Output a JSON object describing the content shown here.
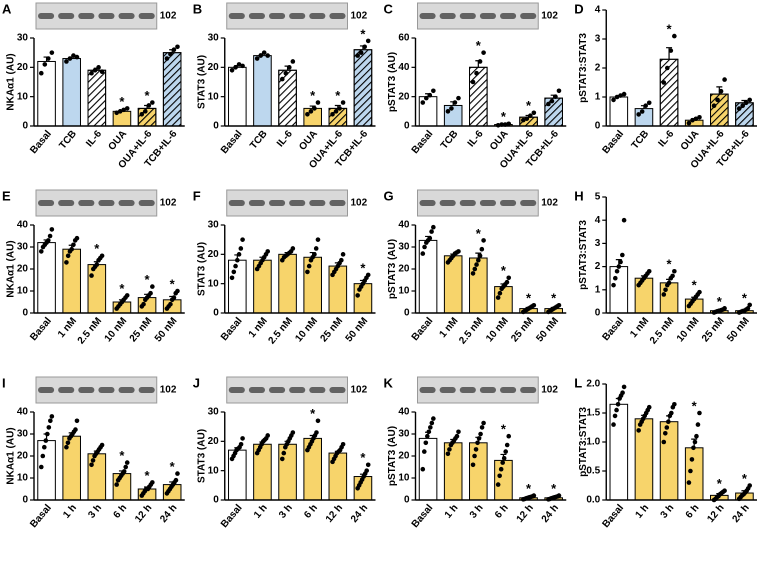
{
  "chart_data": [
    {
      "type": "bar",
      "panel": "A",
      "ylabel": "NKAα1 (AU)",
      "blot_label": "102",
      "categories": [
        "Basal",
        "TCB",
        "IL-6",
        "OUA",
        "OUA+IL-6",
        "TCB+IL-6"
      ],
      "values": [
        22,
        23,
        19,
        5,
        6,
        25
      ],
      "errors": [
        1.5,
        0.5,
        0.7,
        0.3,
        1,
        1
      ],
      "points": [
        [
          18,
          21,
          23,
          25
        ],
        [
          22,
          23,
          24,
          23.5
        ],
        [
          18,
          19,
          20,
          18.5
        ],
        [
          4.5,
          5,
          5.5,
          6
        ],
        [
          4,
          5,
          7,
          8
        ],
        [
          23,
          24.5,
          26,
          27
        ]
      ],
      "marks": [
        null,
        null,
        null,
        "*",
        "*",
        null
      ],
      "colors": [
        "#ffffff",
        "#bdd7ee",
        "#ffffff",
        "#f7d46b",
        "#f7d46b",
        "#bdd7ee"
      ],
      "hatch": [
        false,
        false,
        true,
        false,
        true,
        true
      ],
      "ylim": [
        0,
        30
      ],
      "yticks": [
        0,
        10,
        20,
        30
      ]
    },
    {
      "type": "bar",
      "panel": "B",
      "ylabel": "STAT3 (AU)",
      "blot_label": "102",
      "categories": [
        "Basal",
        "TCB",
        "IL-6",
        "OUA",
        "OUA+IL-6",
        "TCB+IL-6"
      ],
      "values": [
        20,
        24,
        19,
        6,
        6,
        26
      ],
      "errors": [
        0.6,
        0.6,
        1.4,
        0.8,
        1,
        1.3
      ],
      "points": [
        [
          19,
          20,
          21,
          20.5
        ],
        [
          23,
          24,
          25,
          24
        ],
        [
          16,
          18,
          20,
          22
        ],
        [
          4,
          5,
          6,
          8
        ],
        [
          4,
          5,
          6,
          8
        ],
        [
          24,
          25,
          27,
          29
        ]
      ],
      "marks": [
        null,
        null,
        null,
        "*",
        "*",
        "*"
      ],
      "colors": [
        "#ffffff",
        "#bdd7ee",
        "#ffffff",
        "#f7d46b",
        "#f7d46b",
        "#bdd7ee"
      ],
      "hatch": [
        false,
        false,
        true,
        false,
        true,
        true
      ],
      "ylim": [
        0,
        30
      ],
      "yticks": [
        0,
        10,
        20,
        30
      ]
    },
    {
      "type": "bar",
      "panel": "C",
      "ylabel": "pSTAT3 (AU)",
      "blot_label": "102",
      "categories": [
        "Basal",
        "TCB",
        "IL-6",
        "OUA",
        "OUA+IL-6",
        "TCB+IL-6"
      ],
      "values": [
        20,
        14,
        40,
        1,
        6,
        19
      ],
      "errors": [
        2,
        2.5,
        4.5,
        0.3,
        1.2,
        2
      ],
      "points": [
        [
          16,
          19,
          21,
          24
        ],
        [
          10,
          12,
          16,
          19
        ],
        [
          30,
          36,
          44,
          50
        ],
        [
          0.5,
          1,
          1,
          1.5
        ],
        [
          4,
          5,
          7,
          9
        ],
        [
          15,
          17,
          20,
          24
        ]
      ],
      "marks": [
        null,
        null,
        "*",
        "*",
        "*",
        null
      ],
      "colors": [
        "#ffffff",
        "#bdd7ee",
        "#ffffff",
        "#f7d46b",
        "#f7d46b",
        "#bdd7ee"
      ],
      "hatch": [
        false,
        false,
        true,
        false,
        true,
        true
      ],
      "ylim": [
        0,
        60
      ],
      "yticks": [
        0,
        20,
        40,
        60
      ]
    },
    {
      "type": "bar",
      "panel": "D",
      "ylabel": "pSTAT3:STAT3",
      "categories": [
        "Basal",
        "TCB",
        "IL-6",
        "OUA",
        "OUA+IL-6",
        "TCB+IL-6"
      ],
      "values": [
        1.0,
        0.6,
        2.3,
        0.2,
        1.1,
        0.8
      ],
      "errors": [
        0.05,
        0.1,
        0.4,
        0.05,
        0.25,
        0.08
      ],
      "points": [
        [
          0.9,
          1,
          1.05,
          1.1
        ],
        [
          0.4,
          0.5,
          0.7,
          0.8
        ],
        [
          1.5,
          2,
          2.6,
          3.1
        ],
        [
          0.1,
          0.2,
          0.25,
          0.3
        ],
        [
          0.7,
          0.9,
          1.2,
          1.6
        ],
        [
          0.6,
          0.7,
          0.8,
          0.9
        ]
      ],
      "marks": [
        null,
        null,
        "*",
        null,
        null,
        null
      ],
      "colors": [
        "#ffffff",
        "#bdd7ee",
        "#ffffff",
        "#f7d46b",
        "#f7d46b",
        "#bdd7ee"
      ],
      "hatch": [
        false,
        false,
        true,
        false,
        true,
        true
      ],
      "ylim": [
        0,
        4
      ],
      "yticks": [
        0,
        1,
        2,
        3,
        4
      ]
    },
    {
      "type": "bar",
      "panel": "E",
      "ylabel": "NKAα1 (AU)",
      "blot_label": "102",
      "categories": [
        "Basal",
        "1 nM",
        "2.5 nM",
        "10 nM",
        "25 nM",
        "50 nM"
      ],
      "values": [
        32,
        29,
        22,
        5,
        7,
        6
      ],
      "errors": [
        1.2,
        1.8,
        1.3,
        1,
        1.5,
        1.5
      ],
      "points": [
        [
          28,
          30,
          31,
          32,
          33,
          35,
          38
        ],
        [
          23,
          26,
          28,
          29,
          31,
          33,
          34
        ],
        [
          17,
          20,
          21,
          22,
          24,
          25,
          26
        ],
        [
          2,
          3,
          4,
          5,
          6,
          7,
          8
        ],
        [
          3,
          4,
          6,
          7,
          8,
          9,
          12
        ],
        [
          2,
          3,
          4,
          6,
          7,
          9,
          10
        ]
      ],
      "marks": [
        null,
        null,
        "*",
        "*",
        "*",
        "*"
      ],
      "colors": [
        "#ffffff",
        "#f7d46b",
        "#f7d46b",
        "#f7d46b",
        "#f7d46b",
        "#f7d46b"
      ],
      "hatch": [
        false,
        false,
        false,
        false,
        false,
        false
      ],
      "ylim": [
        0,
        40
      ],
      "yticks": [
        0,
        10,
        20,
        30,
        40
      ]
    },
    {
      "type": "bar",
      "panel": "F",
      "ylabel": "STAT3 (AU)",
      "blot_label": "102",
      "categories": [
        "Basal",
        "1 nM",
        "2.5 nM",
        "10 nM",
        "25 nM",
        "50 nM"
      ],
      "values": [
        18,
        18,
        20,
        19,
        16,
        10
      ],
      "errors": [
        1.8,
        1,
        0.6,
        1.6,
        1.1,
        1.1
      ],
      "points": [
        [
          12,
          14,
          16,
          18,
          20,
          22,
          25
        ],
        [
          15,
          16,
          17,
          18,
          19,
          20,
          21
        ],
        [
          18,
          19,
          19.5,
          20,
          20.5,
          21,
          22
        ],
        [
          14,
          16,
          18,
          19,
          20,
          22,
          25
        ],
        [
          13,
          14,
          15,
          16,
          17,
          18,
          20
        ],
        [
          6,
          8,
          9,
          10,
          11,
          12,
          13
        ]
      ],
      "marks": [
        null,
        null,
        null,
        null,
        null,
        "*"
      ],
      "colors": [
        "#ffffff",
        "#f7d46b",
        "#f7d46b",
        "#f7d46b",
        "#f7d46b",
        "#f7d46b"
      ],
      "hatch": [
        false,
        false,
        false,
        false,
        false,
        false
      ],
      "ylim": [
        0,
        30
      ],
      "yticks": [
        0,
        10,
        20,
        30
      ]
    },
    {
      "type": "bar",
      "panel": "G",
      "ylabel": "pSTAT3 (AU)",
      "blot_label": "102",
      "categories": [
        "Basal",
        "1 nM",
        "2.5 nM",
        "10 nM",
        "25 nM",
        "50 nM"
      ],
      "values": [
        33,
        26,
        25,
        12,
        2,
        2
      ],
      "errors": [
        1.8,
        0.8,
        2.2,
        1.2,
        0.5,
        0.5
      ],
      "points": [
        [
          27,
          30,
          32,
          33,
          34,
          37,
          39
        ],
        [
          23,
          24,
          25,
          26,
          27,
          27.5,
          28
        ],
        [
          18,
          20,
          22,
          24,
          26,
          29,
          33
        ],
        [
          7,
          9,
          11,
          12,
          13,
          14,
          16
        ],
        [
          0.5,
          1,
          1.5,
          2,
          2.5,
          3,
          3.5
        ],
        [
          0.5,
          1,
          1.5,
          2,
          2.5,
          3,
          3.5
        ]
      ],
      "marks": [
        null,
        null,
        "*",
        "*",
        "*",
        "*"
      ],
      "colors": [
        "#ffffff",
        "#f7d46b",
        "#f7d46b",
        "#f7d46b",
        "#f7d46b",
        "#f7d46b"
      ],
      "hatch": [
        false,
        false,
        false,
        false,
        false,
        false
      ],
      "ylim": [
        0,
        40
      ],
      "yticks": [
        0,
        10,
        20,
        30,
        40
      ]
    },
    {
      "type": "bar",
      "panel": "H",
      "ylabel": "pSTAT3:STAT3",
      "categories": [
        "Basal",
        "1 nM",
        "2.5 nM",
        "10 nM",
        "25 nM",
        "50 nM"
      ],
      "values": [
        2.0,
        1.5,
        1.3,
        0.6,
        0.1,
        0.1
      ],
      "errors": [
        0.3,
        0.1,
        0.15,
        0.08,
        0.03,
        0.05
      ],
      "points": [
        [
          1.2,
          1.5,
          1.8,
          2,
          2.2,
          2.5,
          4
        ],
        [
          1.2,
          1.3,
          1.4,
          1.5,
          1.6,
          1.7,
          1.8
        ],
        [
          0.8,
          1,
          1.2,
          1.3,
          1.5,
          1.6,
          1.8
        ],
        [
          0.3,
          0.4,
          0.5,
          0.6,
          0.7,
          0.8,
          0.9
        ],
        [
          0.02,
          0.05,
          0.08,
          0.1,
          0.12,
          0.15,
          0.2
        ],
        [
          0.02,
          0.05,
          0.08,
          0.1,
          0.15,
          0.2,
          0.35
        ]
      ],
      "marks": [
        null,
        null,
        "*",
        "*",
        "*",
        "*"
      ],
      "colors": [
        "#ffffff",
        "#f7d46b",
        "#f7d46b",
        "#f7d46b",
        "#f7d46b",
        "#f7d46b"
      ],
      "hatch": [
        false,
        false,
        false,
        false,
        false,
        false
      ],
      "ylim": [
        0,
        5
      ],
      "yticks": [
        0,
        1,
        2,
        3,
        4,
        5
      ]
    },
    {
      "type": "bar",
      "panel": "I",
      "ylabel": "NKAα1 (AU)",
      "blot_label": "102",
      "categories": [
        "Basal",
        "1 h",
        "3 h",
        "6 h",
        "12 h",
        "24 h"
      ],
      "values": [
        27,
        29,
        21,
        12,
        5,
        7
      ],
      "errors": [
        3,
        1.5,
        1.2,
        1.2,
        0.9,
        1.2
      ],
      "points": [
        [
          15,
          20,
          24,
          27,
          30,
          33,
          36,
          38
        ],
        [
          24,
          26,
          28,
          29,
          30,
          31,
          32,
          36
        ],
        [
          16,
          18,
          20,
          21,
          22,
          23,
          24,
          25
        ],
        [
          7,
          9,
          10,
          11,
          12,
          13,
          15,
          17
        ],
        [
          2,
          3,
          4,
          5,
          5,
          6,
          7,
          8
        ],
        [
          3,
          4,
          5,
          6,
          7,
          8,
          9,
          12
        ]
      ],
      "marks": [
        null,
        null,
        null,
        "*",
        "*",
        "*"
      ],
      "colors": [
        "#ffffff",
        "#f7d46b",
        "#f7d46b",
        "#f7d46b",
        "#f7d46b",
        "#f7d46b"
      ],
      "hatch": [
        false,
        false,
        false,
        false,
        false,
        false
      ],
      "ylim": [
        0,
        40
      ],
      "yticks": [
        0,
        10,
        20,
        30,
        40
      ]
    },
    {
      "type": "bar",
      "panel": "J",
      "ylabel": "STAT3 (AU)",
      "blot_label": "102",
      "categories": [
        "Basal",
        "1 h",
        "3 h",
        "6 h",
        "12 h",
        "24 h"
      ],
      "values": [
        17,
        19,
        19,
        21,
        16,
        8
      ],
      "errors": [
        0.8,
        0.8,
        1,
        1,
        0.6,
        0.8
      ],
      "points": [
        [
          14,
          15,
          16,
          17,
          17.5,
          18,
          19,
          21
        ],
        [
          16,
          17,
          18,
          19,
          20,
          20.5,
          21,
          22
        ],
        [
          14,
          16,
          18,
          19,
          20,
          21,
          22,
          23
        ],
        [
          17,
          18,
          19,
          20,
          21,
          22,
          23,
          27
        ],
        [
          13,
          14,
          15,
          16,
          16.5,
          17,
          18,
          19
        ],
        [
          4,
          5,
          6,
          7,
          8,
          9,
          10,
          12
        ]
      ],
      "marks": [
        null,
        null,
        null,
        "*",
        null,
        "*"
      ],
      "colors": [
        "#ffffff",
        "#f7d46b",
        "#f7d46b",
        "#f7d46b",
        "#f7d46b",
        "#f7d46b"
      ],
      "hatch": [
        false,
        false,
        false,
        false,
        false,
        false
      ],
      "ylim": [
        0,
        30
      ],
      "yticks": [
        0,
        10,
        20,
        30
      ]
    },
    {
      "type": "bar",
      "panel": "K",
      "ylabel": "pSTAT3 (AU)",
      "blot_label": "102",
      "categories": [
        "Basal",
        "1 h",
        "3 h",
        "6 h",
        "12 h",
        "24 h"
      ],
      "values": [
        28,
        26,
        26,
        18,
        1,
        1
      ],
      "errors": [
        2.8,
        1.5,
        2.5,
        2.7,
        0.3,
        0.3
      ],
      "points": [
        [
          14,
          22,
          26,
          29,
          31,
          33,
          35,
          37
        ],
        [
          21,
          23,
          25,
          26,
          27,
          28,
          29,
          31
        ],
        [
          16,
          20,
          23,
          26,
          28,
          30,
          33,
          35
        ],
        [
          7,
          11,
          14,
          17,
          19,
          22,
          25,
          29
        ],
        [
          0.3,
          0.5,
          0.8,
          1,
          1.2,
          1.4,
          1.6,
          2
        ],
        [
          0.3,
          0.5,
          0.8,
          1,
          1.2,
          1.4,
          1.6,
          2
        ]
      ],
      "marks": [
        null,
        null,
        null,
        "*",
        "*",
        "*"
      ],
      "colors": [
        "#ffffff",
        "#f7d46b",
        "#f7d46b",
        "#f7d46b",
        "#f7d46b",
        "#f7d46b"
      ],
      "hatch": [
        false,
        false,
        false,
        false,
        false,
        false
      ],
      "ylim": [
        0,
        40
      ],
      "yticks": [
        0,
        10,
        20,
        30,
        40
      ]
    },
    {
      "type": "bar",
      "panel": "L",
      "ylabel": "pSTAT3:STAT3",
      "categories": [
        "Basal",
        "1 h",
        "3 h",
        "6 h",
        "12 h",
        "24 h"
      ],
      "values": [
        1.65,
        1.4,
        1.35,
        0.9,
        0.08,
        0.12
      ],
      "errors": [
        0.1,
        0.06,
        0.1,
        0.15,
        0.03,
        0.04
      ],
      "points": [
        [
          1.3,
          1.45,
          1.55,
          1.65,
          1.75,
          1.8,
          1.85,
          1.95
        ],
        [
          1.2,
          1.3,
          1.35,
          1.4,
          1.45,
          1.5,
          1.55,
          1.6
        ],
        [
          1.0,
          1.15,
          1.25,
          1.35,
          1.45,
          1.5,
          1.6,
          1.65
        ],
        [
          0.3,
          0.5,
          0.7,
          0.9,
          1.0,
          1.1,
          1.3,
          1.5
        ],
        [
          0.0,
          0.02,
          0.05,
          0.07,
          0.1,
          0.12,
          0.14,
          0.16
        ],
        [
          0.02,
          0.05,
          0.08,
          0.1,
          0.13,
          0.16,
          0.2,
          0.25
        ]
      ],
      "marks": [
        null,
        null,
        null,
        "*",
        "*",
        "*"
      ],
      "colors": [
        "#ffffff",
        "#f7d46b",
        "#f7d46b",
        "#f7d46b",
        "#f7d46b",
        "#f7d46b"
      ],
      "hatch": [
        false,
        false,
        false,
        false,
        false,
        false
      ],
      "ylim": [
        0,
        2
      ],
      "yticks": [
        {
          "value": 0,
          "label": "0.0"
        },
        {
          "value": 0.5,
          "label": "0.5"
        },
        {
          "value": 1,
          "label": "1.0"
        },
        {
          "value": 1.5,
          "label": "1.5"
        },
        {
          "value": 2,
          "label": "2.0"
        }
      ]
    }
  ]
}
